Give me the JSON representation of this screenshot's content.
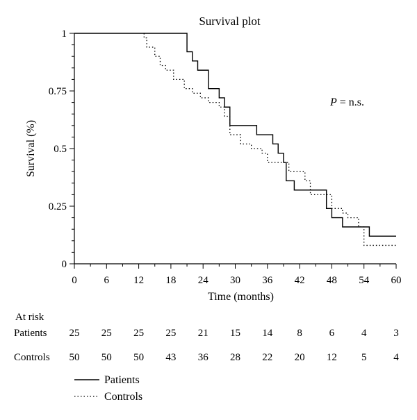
{
  "chart_data": {
    "type": "line",
    "title": "Survival plot",
    "xlabel": "Time (months)",
    "ylabel": "Survival (%)",
    "xlim": [
      0,
      60
    ],
    "ylim": [
      0,
      1
    ],
    "x_ticks": [
      0,
      6,
      12,
      18,
      24,
      30,
      36,
      42,
      48,
      54,
      60
    ],
    "x_tick_labels": [
      "0",
      "6",
      "12",
      "18",
      "24",
      "30",
      "36",
      "42",
      "48",
      "54",
      "60"
    ],
    "y_ticks": [
      0,
      0.25,
      0.5,
      0.75,
      1
    ],
    "y_tick_labels": [
      "0",
      "0.25",
      "0.5",
      "0.75",
      "1"
    ],
    "grid": false,
    "annotation": {
      "p_symbol": "P",
      "p_rest": " = n.s."
    },
    "series": [
      {
        "name": "Patients",
        "style": "solid",
        "color": "#000000",
        "steps": [
          [
            0,
            1
          ],
          [
            21,
            0.92
          ],
          [
            22,
            0.88
          ],
          [
            23,
            0.84
          ],
          [
            25,
            0.76
          ],
          [
            27,
            0.72
          ],
          [
            28,
            0.68
          ],
          [
            29,
            0.6
          ],
          [
            34,
            0.56
          ],
          [
            37,
            0.52
          ],
          [
            38,
            0.48
          ],
          [
            39,
            0.44
          ],
          [
            39.5,
            0.36
          ],
          [
            41,
            0.32
          ],
          [
            47,
            0.24
          ],
          [
            48,
            0.2
          ],
          [
            50,
            0.16
          ],
          [
            55,
            0.12
          ],
          [
            60,
            0.12
          ]
        ]
      },
      {
        "name": "Controls",
        "style": "dotted",
        "color": "#000000",
        "steps": [
          [
            13,
            0.98
          ],
          [
            13.5,
            0.94
          ],
          [
            15,
            0.9
          ],
          [
            16,
            0.86
          ],
          [
            17,
            0.84
          ],
          [
            18.5,
            0.8
          ],
          [
            20.5,
            0.76
          ],
          [
            22,
            0.74
          ],
          [
            23.5,
            0.72
          ],
          [
            25,
            0.7
          ],
          [
            27,
            0.68
          ],
          [
            28,
            0.64
          ],
          [
            29,
            0.56
          ],
          [
            31,
            0.52
          ],
          [
            33,
            0.5
          ],
          [
            35,
            0.48
          ],
          [
            36,
            0.44
          ],
          [
            40,
            0.4
          ],
          [
            43,
            0.36
          ],
          [
            44,
            0.3
          ],
          [
            48,
            0.24
          ],
          [
            50,
            0.22
          ],
          [
            51,
            0.2
          ],
          [
            53,
            0.16
          ],
          [
            54,
            0.08
          ],
          [
            60,
            0.08
          ]
        ]
      }
    ]
  },
  "risk_table": {
    "title": "At risk",
    "rows": [
      {
        "label": "Patients",
        "values": [
          "25",
          "25",
          "25",
          "25",
          "21",
          "15",
          "14",
          "8",
          "6",
          "4",
          "3"
        ]
      },
      {
        "label": "Controls",
        "values": [
          "50",
          "50",
          "50",
          "43",
          "36",
          "28",
          "22",
          "20",
          "12",
          "5",
          "4"
        ]
      }
    ]
  },
  "legend": [
    {
      "label": "Patients",
      "style": "solid"
    },
    {
      "label": "Controls",
      "style": "dotted"
    }
  ]
}
